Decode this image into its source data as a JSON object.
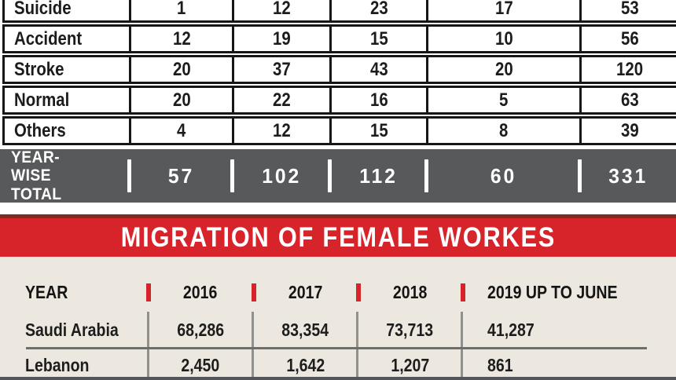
{
  "deaths_table": {
    "rows": [
      {
        "label": "Suicide",
        "values": [
          "1",
          "12",
          "23",
          "17",
          "53"
        ]
      },
      {
        "label": "Accident",
        "values": [
          "12",
          "19",
          "15",
          "10",
          "56"
        ]
      },
      {
        "label": "Stroke",
        "values": [
          "20",
          "37",
          "43",
          "20",
          "120"
        ]
      },
      {
        "label": "Normal",
        "values": [
          "20",
          "22",
          "16",
          "5",
          "63"
        ]
      },
      {
        "label": "Others",
        "values": [
          "4",
          "12",
          "15",
          "8",
          "39"
        ]
      }
    ],
    "total_row": {
      "label": "YEAR-WISE TOTAL",
      "values": [
        "57",
        "102",
        "112",
        "60",
        "331"
      ]
    }
  },
  "banner": {
    "title": "MIGRATION OF FEMALE WORKES"
  },
  "migration_table": {
    "headers": [
      "YEAR",
      "2016",
      "2017",
      "2018",
      "2019 UP TO JUNE"
    ],
    "rows": [
      {
        "label": "Saudi Arabia",
        "values": [
          "68,286",
          "83,354",
          "73,713",
          "41,287"
        ]
      },
      {
        "label": "Lebanon",
        "values": [
          "2,450",
          "1,642",
          "1,207",
          "861"
        ]
      }
    ]
  },
  "colors": {
    "accent_red": "#d7232a",
    "total_bar_gray": "#58595b",
    "cream_background": "#ece8df",
    "table_border_black": "#161616"
  },
  "chart_data": [
    {
      "type": "table",
      "rows": [
        [
          "Suicide",
          1,
          12,
          23,
          17,
          53
        ],
        [
          "Accident",
          12,
          19,
          15,
          10,
          56
        ],
        [
          "Stroke",
          20,
          37,
          43,
          20,
          120
        ],
        [
          "Normal",
          20,
          22,
          16,
          5,
          63
        ],
        [
          "Others",
          4,
          12,
          15,
          8,
          39
        ],
        [
          "YEAR-WISE TOTAL",
          57,
          102,
          112,
          60,
          331
        ]
      ]
    },
    {
      "type": "table",
      "title": "MIGRATION OF FEMALE WORKES",
      "columns": [
        "YEAR",
        "2016",
        "2017",
        "2018",
        "2019 UP TO JUNE"
      ],
      "rows": [
        [
          "Saudi Arabia",
          "68,286",
          "83,354",
          "73,713",
          "41,287"
        ],
        [
          "Lebanon",
          "2,450",
          "1,642",
          "1,207",
          "861"
        ]
      ]
    }
  ]
}
